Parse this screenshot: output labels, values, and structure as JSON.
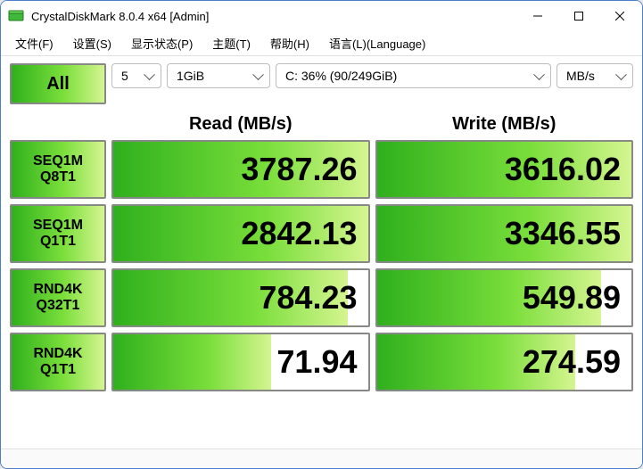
{
  "window": {
    "title": "CrystalDiskMark 8.0.4 x64 [Admin]"
  },
  "menu": {
    "file": "文件(F)",
    "settings": "设置(S)",
    "status": "显示状态(P)",
    "theme": "主题(T)",
    "help": "帮助(H)",
    "language": "语言(L)(Language)"
  },
  "controls": {
    "all_label": "All",
    "count": "5",
    "size": "1GiB",
    "drive": "C: 36% (90/249GiB)",
    "unit": "MB/s"
  },
  "headers": {
    "read": "Read (MB/s)",
    "write": "Write (MB/s)"
  },
  "tests": [
    {
      "name1": "SEQ1M",
      "name2": "Q8T1",
      "read": "3787.26",
      "read_pct": 100,
      "write": "3616.02",
      "write_pct": 100
    },
    {
      "name1": "SEQ1M",
      "name2": "Q1T1",
      "read": "2842.13",
      "read_pct": 100,
      "write": "3346.55",
      "write_pct": 100
    },
    {
      "name1": "RND4K",
      "name2": "Q32T1",
      "read": "784.23",
      "read_pct": 92,
      "write": "549.89",
      "write_pct": 88
    },
    {
      "name1": "RND4K",
      "name2": "Q1T1",
      "read": "71.94",
      "read_pct": 62,
      "write": "274.59",
      "write_pct": 78
    }
  ],
  "colors": {
    "accent_border": "#4a7fcc",
    "gradient_from": "#2fb01d",
    "gradient_mid": "#79de3a",
    "gradient_to": "#d5f590",
    "cell_border": "#888888"
  }
}
